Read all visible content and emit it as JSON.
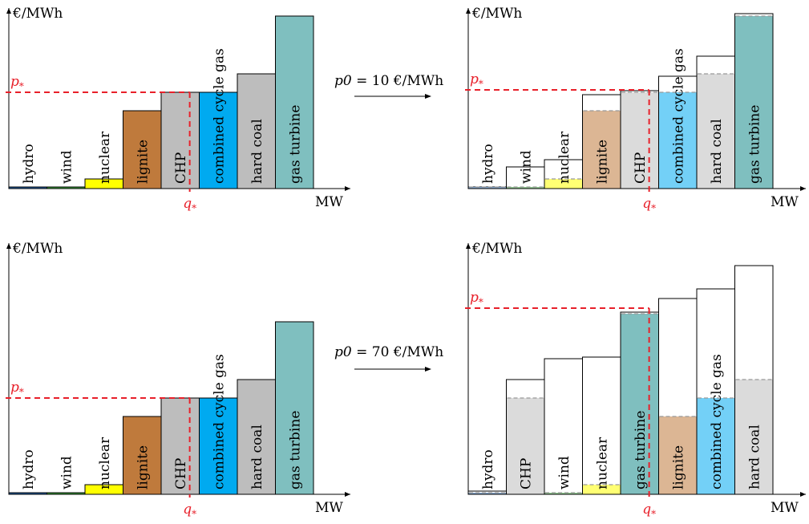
{
  "axis": {
    "y_label": "€/MWh",
    "x_label": "MW",
    "price_label": "p*",
    "quantity_label": "q*"
  },
  "transitions": [
    {
      "var": "p0",
      "op": "=",
      "value": "10 €/MWh"
    },
    {
      "var": "p0",
      "op": "=",
      "value": "70 €/MWh"
    }
  ],
  "colors": {
    "hydro": "#1f5fa8",
    "wind": "#3aa83a",
    "nuclear": "#ffff00",
    "lignite": "#bf7a3c",
    "CHP": "#bdbdbd",
    "combined cycle gas": "#00aaf0",
    "hard coal": "#bdbdbd",
    "gas turbine": "#7fbfbf",
    "price_line": "#e8202a"
  },
  "chart_data": [
    {
      "type": "bar",
      "panel": "top-left",
      "categories": [
        "hydro",
        "wind",
        "nuclear",
        "lignite",
        "CHP",
        "combined cycle gas",
        "hard coal",
        "gas turbine"
      ],
      "values": [
        2,
        2,
        12,
        97,
        120,
        120,
        143,
        215
      ],
      "p_star": 120,
      "q_star_unit": 4.75
    },
    {
      "type": "bar",
      "panel": "top-right",
      "categories": [
        "hydro",
        "wind",
        "nuclear",
        "lignite",
        "CHP",
        "combined cycle gas",
        "hard coal",
        "gas turbine"
      ],
      "values": [
        2,
        27,
        36,
        117,
        122,
        140,
        165,
        218
      ],
      "base_values": [
        2,
        2,
        12,
        97,
        120,
        120,
        143,
        215
      ],
      "p_star": 123,
      "q_star_unit": 4.75
    },
    {
      "type": "bar",
      "panel": "bottom-left",
      "categories": [
        "hydro",
        "wind",
        "nuclear",
        "lignite",
        "CHP",
        "combined cycle gas",
        "hard coal",
        "gas turbine"
      ],
      "values": [
        2,
        2,
        12,
        97,
        120,
        120,
        143,
        215
      ],
      "p_star": 120,
      "q_star_unit": 4.75
    },
    {
      "type": "bar",
      "panel": "bottom-right",
      "categories": [
        "hydro",
        "CHP",
        "wind",
        "nuclear",
        "gas turbine",
        "lignite",
        "combined cycle gas",
        "hard coal"
      ],
      "values": [
        4,
        143,
        169,
        171,
        227,
        244,
        256,
        285
      ],
      "base_values": [
        2,
        120,
        2,
        12,
        225,
        97,
        120,
        143
      ],
      "p_star": 232,
      "q_star_unit": 4.75
    }
  ]
}
